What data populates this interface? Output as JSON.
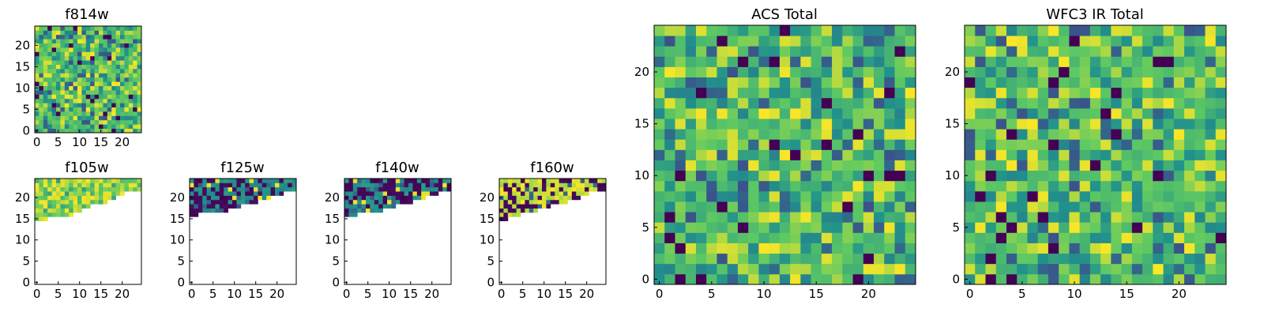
{
  "figure_title": "",
  "colormap": {
    "name": "viridis",
    "stops": [
      "#440154",
      "#3b528b",
      "#21918c",
      "#5ec962",
      "#fde725"
    ]
  },
  "chart_data": [
    {
      "type": "heatmap",
      "title": "f814w",
      "grid_size": 25,
      "xlim": [
        -0.5,
        24.5
      ],
      "ylim": [
        -0.5,
        24.5
      ],
      "xticks": [
        "0",
        "5",
        "10",
        "15",
        "20"
      ],
      "yticks": [
        "0",
        "5",
        "10",
        "15",
        "20"
      ],
      "coverage": "full",
      "fill_style": "noisy",
      "seed": 11
    },
    {
      "type": "heatmap",
      "title": "f105w",
      "grid_size": 25,
      "xlim": [
        -0.5,
        24.5
      ],
      "ylim": [
        -0.5,
        24.5
      ],
      "xticks": [
        "0",
        "5",
        "10",
        "15",
        "20"
      ],
      "yticks": [
        "0",
        "5",
        "10",
        "15",
        "20"
      ],
      "coverage": "top-wedge",
      "coverage_edges": [
        15,
        15,
        15,
        16,
        16,
        16,
        16,
        16,
        16,
        17,
        17,
        18,
        18,
        19,
        19,
        19,
        19,
        20,
        20,
        21,
        21,
        22,
        22,
        22,
        22
      ],
      "fill_style": "bright",
      "seed": 23
    },
    {
      "type": "heatmap",
      "title": "f125w",
      "grid_size": 25,
      "xlim": [
        -0.5,
        24.5
      ],
      "ylim": [
        -0.5,
        24.5
      ],
      "xticks": [
        "0",
        "5",
        "10",
        "15",
        "20"
      ],
      "yticks": [
        "0",
        "5",
        "10",
        "15",
        "20"
      ],
      "coverage": "top-wedge",
      "coverage_edges": [
        16,
        16,
        17,
        17,
        17,
        17,
        17,
        17,
        17,
        18,
        18,
        18,
        19,
        19,
        19,
        19,
        20,
        20,
        20,
        21,
        21,
        21,
        22,
        22,
        22
      ],
      "fill_style": "dark",
      "seed": 37
    },
    {
      "type": "heatmap",
      "title": "f140w",
      "grid_size": 25,
      "xlim": [
        -0.5,
        24.5
      ],
      "ylim": [
        -0.5,
        24.5
      ],
      "xticks": [
        "0",
        "5",
        "10",
        "15",
        "20"
      ],
      "yticks": [
        "0",
        "5",
        "10",
        "15",
        "20"
      ],
      "coverage": "top-wedge",
      "coverage_edges": [
        16,
        16,
        16,
        17,
        17,
        17,
        17,
        17,
        17,
        18,
        18,
        18,
        19,
        19,
        19,
        19,
        20,
        20,
        20,
        21,
        21,
        21,
        22,
        22,
        22
      ],
      "fill_style": "dark",
      "seed": 41
    },
    {
      "type": "heatmap",
      "title": "f160w",
      "grid_size": 25,
      "xlim": [
        -0.5,
        24.5
      ],
      "ylim": [
        -0.5,
        24.5
      ],
      "xticks": [
        "0",
        "5",
        "10",
        "15",
        "20"
      ],
      "yticks": [
        "0",
        "5",
        "10",
        "15",
        "20"
      ],
      "coverage": "top-wedge",
      "coverage_edges": [
        15,
        15,
        16,
        16,
        16,
        17,
        17,
        17,
        17,
        18,
        18,
        18,
        19,
        19,
        19,
        19,
        20,
        20,
        20,
        21,
        21,
        22,
        22,
        22,
        22
      ],
      "fill_style": "mixed",
      "seed": 53
    },
    {
      "type": "heatmap",
      "title": "ACS Total",
      "grid_size": 25,
      "xlim": [
        -0.5,
        24.5
      ],
      "ylim": [
        -0.5,
        24.5
      ],
      "xticks": [
        "0",
        "5",
        "10",
        "15",
        "20"
      ],
      "yticks": [
        "0",
        "5",
        "10",
        "15",
        "20"
      ],
      "coverage": "full",
      "fill_style": "noisy",
      "seed": 67
    },
    {
      "type": "heatmap",
      "title": "WFC3 IR Total",
      "grid_size": 25,
      "xlim": [
        -0.5,
        24.5
      ],
      "ylim": [
        -0.5,
        24.5
      ],
      "xticks": [
        "0",
        "5",
        "10",
        "15",
        "20"
      ],
      "yticks": [
        "0",
        "5",
        "10",
        "15",
        "20"
      ],
      "coverage": "full",
      "fill_style": "noisy",
      "seed": 79
    }
  ]
}
